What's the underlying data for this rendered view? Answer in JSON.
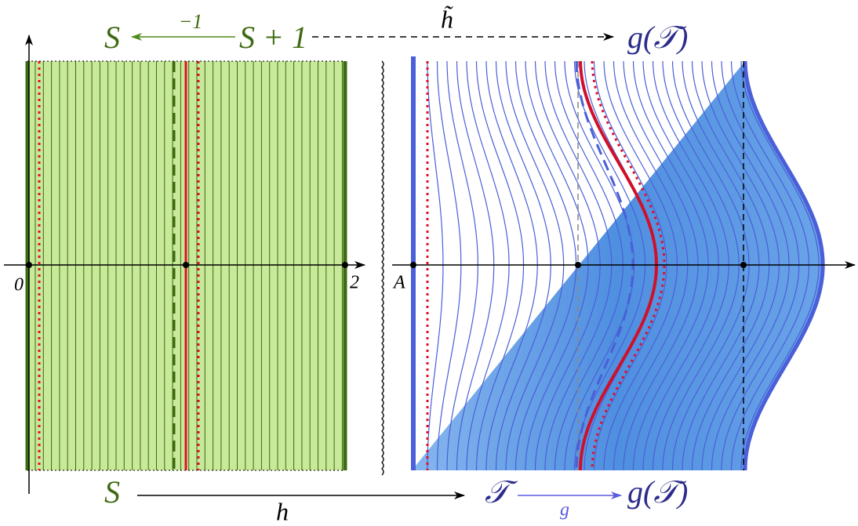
{
  "top": {
    "left_set": "S",
    "shift_label": "−1",
    "shifted_set": "S + 1",
    "map_label": "h̃",
    "image_set": "g(𝒯)"
  },
  "axes": {
    "origin_label": "0",
    "end_label": "2",
    "point_label": "A"
  },
  "bottom": {
    "left_set": "S",
    "map_label": "h",
    "middle_set": "𝒯",
    "inner_map_label": "g",
    "image_set": "g(𝒯)"
  }
}
